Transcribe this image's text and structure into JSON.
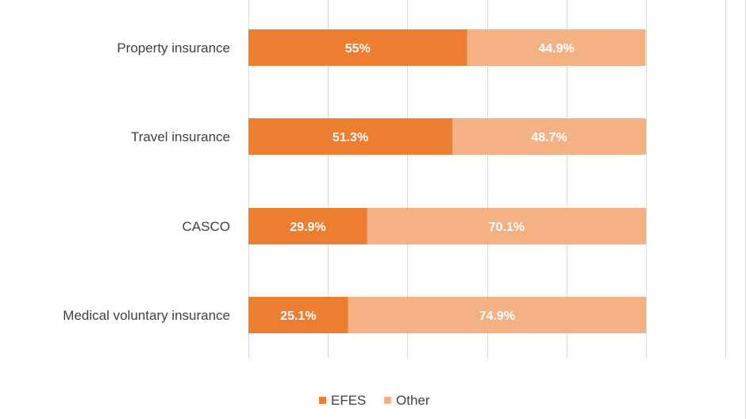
{
  "chart_data": {
    "type": "bar",
    "orientation": "horizontal",
    "stacked": true,
    "categories": [
      "Property insurance",
      "Travel insurance",
      "CASCO",
      "Medical voluntary insurance"
    ],
    "series": [
      {
        "name": "EFES",
        "values": [
          55,
          51.3,
          29.9,
          25.1
        ],
        "labels": [
          "55%",
          "51.3%",
          "29.9%",
          "25.1%"
        ],
        "color": "#ed7d31"
      },
      {
        "name": "Other",
        "values": [
          44.9,
          48.7,
          70.1,
          74.9
        ],
        "labels": [
          "44.9%",
          "48.7%",
          "70.1%",
          "74.9%"
        ],
        "color": "#f4b183"
      }
    ],
    "xlim": [
      0,
      120
    ],
    "grid": true,
    "legend": "bottom",
    "title": "",
    "xlabel": "",
    "ylabel": ""
  }
}
